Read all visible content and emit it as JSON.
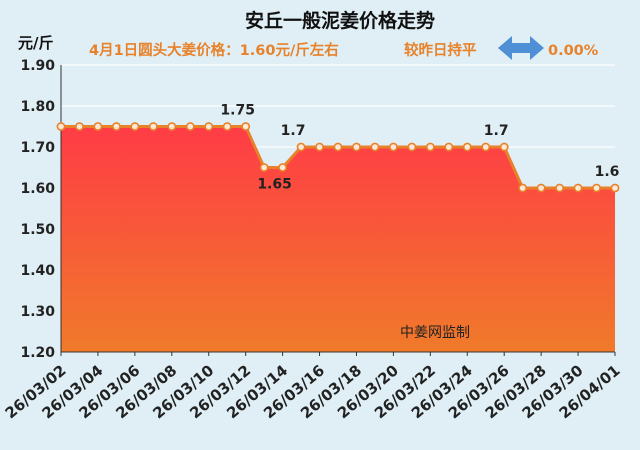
{
  "chart_data": {
    "type": "area",
    "title": "安丘一般泥姜价格走势",
    "subtitle_left": "4月1日圆头大姜价格：1.60元/斤左右",
    "subtitle_right": "较昨日持平",
    "change_pct": "0.00%",
    "ylabel": "元/斤",
    "watermark": "中姜网监制",
    "ylim": [
      1.2,
      1.9
    ],
    "yticks": [
      "1.20",
      "1.30",
      "1.40",
      "1.50",
      "1.60",
      "1.70",
      "1.80",
      "1.90"
    ],
    "x": [
      "26/03/02",
      "26/03/03",
      "26/03/04",
      "26/03/05",
      "26/03/06",
      "26/03/07",
      "26/03/08",
      "26/03/09",
      "26/03/10",
      "26/03/11",
      "26/03/12",
      "26/03/13",
      "26/03/14",
      "26/03/15",
      "26/03/16",
      "26/03/17",
      "26/03/18",
      "26/03/19",
      "26/03/20",
      "26/03/21",
      "26/03/22",
      "26/03/23",
      "26/03/24",
      "26/03/25",
      "26/03/26",
      "26/03/27",
      "26/03/28",
      "26/03/29",
      "26/03/30",
      "26/03/31",
      "26/04/01"
    ],
    "xtick_labels": [
      "26/03/02",
      "26/03/04",
      "26/03/06",
      "26/03/08",
      "26/03/10",
      "26/03/12",
      "26/03/14",
      "26/03/16",
      "26/03/18",
      "26/03/20",
      "26/03/22",
      "26/03/24",
      "26/03/26",
      "26/03/28",
      "26/03/30",
      "26/04/01"
    ],
    "values": [
      1.75,
      1.75,
      1.75,
      1.75,
      1.75,
      1.75,
      1.75,
      1.75,
      1.75,
      1.75,
      1.75,
      1.65,
      1.65,
      1.7,
      1.7,
      1.7,
      1.7,
      1.7,
      1.7,
      1.7,
      1.7,
      1.7,
      1.7,
      1.7,
      1.7,
      1.6,
      1.6,
      1.6,
      1.6,
      1.6,
      1.6
    ],
    "data_labels": [
      {
        "index": 10,
        "text": "1.75",
        "pos": "above"
      },
      {
        "index": 12,
        "text": "1.65",
        "pos": "below"
      },
      {
        "index": 13,
        "text": "1.7",
        "pos": "above"
      },
      {
        "index": 24,
        "text": "1.7",
        "pos": "above"
      },
      {
        "index": 30,
        "text": "1.6",
        "pos": "above"
      }
    ],
    "grid": "horizontal",
    "colors": {
      "line": "#e8822a",
      "fill_top": "#ff3c46",
      "fill_bottom": "#f07a2a",
      "title": "#111111",
      "subtitle": "#e8822a",
      "arrow": "#4f8fd6",
      "background": "#dfeff5"
    }
  }
}
